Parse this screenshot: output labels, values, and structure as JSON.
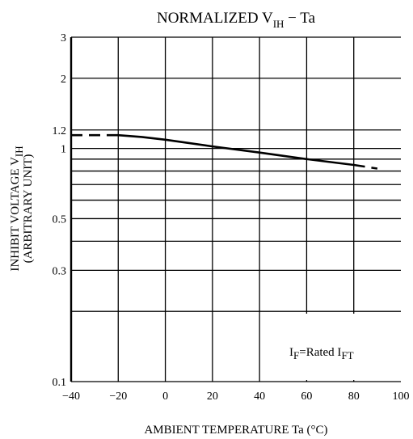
{
  "chart_data": {
    "type": "line",
    "title": {
      "text": "NORMALIZED V",
      "sub": "IH",
      "suffix": " − Ta"
    },
    "xlabel": "AMBIENT TEMPERATURE   Ta   (°C)",
    "ylabel": {
      "line1": "INHIBIT VOLTAGE   V",
      "line1_sub": "IH",
      "line2": "(ARBITRARY UNIT)"
    },
    "annotation": {
      "a": "I",
      "a_sub": "F",
      "b": "=Rated I",
      "b_sub": "FT"
    },
    "x_scale": "linear",
    "y_scale": "log",
    "xlim": [
      -40,
      100
    ],
    "ylim": [
      0.1,
      3
    ],
    "x_ticks": [
      -40,
      -20,
      0,
      20,
      40,
      60,
      80,
      100
    ],
    "x_tick_labels": [
      "−40",
      "−20",
      "0",
      "20",
      "40",
      "60",
      "80",
      "100"
    ],
    "y_tick_labels": [
      {
        "value": 0.1,
        "label": "0.1"
      },
      {
        "value": 0.3,
        "label": "0.3"
      },
      {
        "value": 0.5,
        "label": "0.5"
      },
      {
        "value": 1,
        "label": "1"
      },
      {
        "value": 1.2,
        "label": "1.2"
      },
      {
        "value": 2,
        "label": "2"
      },
      {
        "value": 3,
        "label": "3"
      }
    ],
    "y_gridlines": [
      0.2,
      0.3,
      0.4,
      0.5,
      0.6,
      0.7,
      0.8,
      0.9,
      1,
      1.2,
      2
    ],
    "grid": true,
    "series": [
      {
        "style": "dashed",
        "x": [
          -40,
          -20
        ],
        "y": [
          1.14,
          1.14
        ]
      },
      {
        "style": "solid",
        "x": [
          -20,
          -10,
          0,
          20,
          40,
          60,
          80
        ],
        "y": [
          1.14,
          1.12,
          1.09,
          1.02,
          0.96,
          0.9,
          0.85
        ]
      },
      {
        "style": "dashed",
        "x": [
          80,
          90
        ],
        "y": [
          0.85,
          0.82
        ]
      }
    ]
  }
}
